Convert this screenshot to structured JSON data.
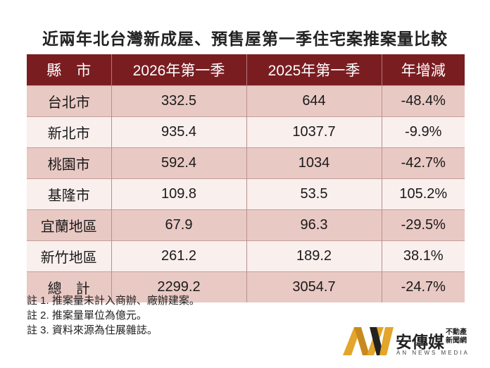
{
  "title": "近兩年北台灣新成屋、預售屋第一季住宅案推案量比較",
  "table": {
    "headers": [
      "縣　市",
      "2026年第一季",
      "2025年第一季",
      "年增減"
    ],
    "rows": [
      [
        "台北市",
        "332.5",
        "644",
        "-48.4%"
      ],
      [
        "新北市",
        "935.4",
        "1037.7",
        "-9.9%"
      ],
      [
        "桃園市",
        "592.4",
        "1034",
        "-42.7%"
      ],
      [
        "基隆市",
        "109.8",
        "53.5",
        "105.2%"
      ],
      [
        "宜蘭地區",
        "67.9",
        "96.3",
        "-29.5%"
      ],
      [
        "新竹地區",
        "261.2",
        "189.2",
        "38.1%"
      ],
      [
        "總　計",
        "2299.2",
        "3054.7",
        "-24.7%"
      ]
    ]
  },
  "notes": [
    "註 1. 推案量未計入商辦、廠辦建案。",
    "註 2. 推案量單位為億元。",
    "註 3. 資料來源為住展雜誌。"
  ],
  "logo": {
    "name": "安傳媒",
    "side_line1": "不動產",
    "side_line2": "新聞網",
    "english": "AN NEWS MEDIA"
  },
  "colors": {
    "header_bg": "#7a1d21",
    "row_odd": "#e9c9c4",
    "row_even": "#f9efed",
    "logo_gold": "#e3a52a"
  }
}
